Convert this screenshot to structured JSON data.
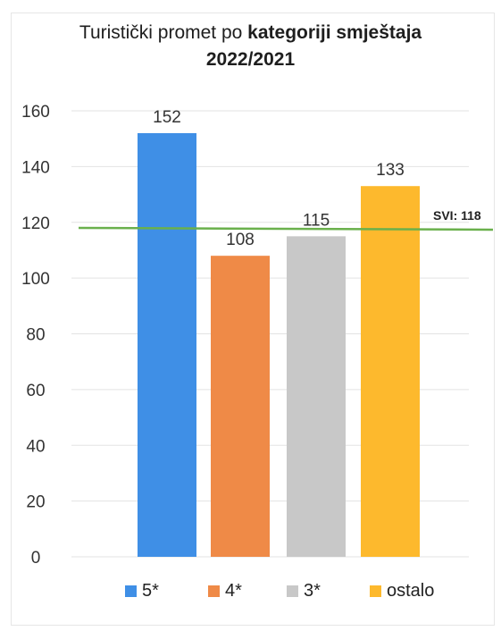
{
  "chart_data": {
    "type": "bar",
    "title_normal": "Turistički promet po",
    "title_bold": "kategoriji smještaja",
    "subtitle": "2022/2021",
    "categories": [
      "5*",
      "4*",
      "3*",
      "ostalo"
    ],
    "values": [
      152,
      108,
      115,
      133
    ],
    "colors": [
      "#3f8fe6",
      "#ef8a47",
      "#c8c8c8",
      "#fdb92d"
    ],
    "ylim": [
      0,
      160
    ],
    "yticks": [
      0,
      20,
      40,
      60,
      80,
      100,
      120,
      140,
      160
    ],
    "grid": true,
    "legend_position": "bottom",
    "reference_line": {
      "value": 118,
      "label": "SVI: 118",
      "color": "#6ab04c"
    }
  }
}
